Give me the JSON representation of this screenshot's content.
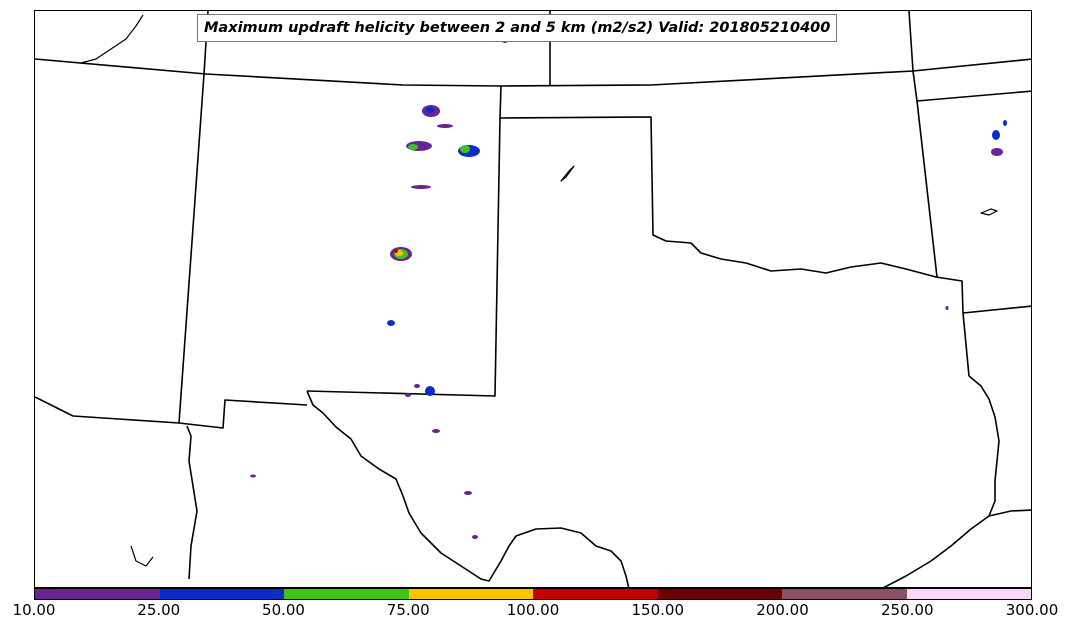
{
  "title": "Maximum updraft helicity between 2 and 5 km (m2/s2) Valid: 201805210400",
  "colorbar": {
    "labels": [
      "10.00",
      "25.00",
      "50.00",
      "75.00",
      "100.00",
      "150.00",
      "200.00",
      "250.00",
      "300.00"
    ],
    "colors": [
      "#6a2393",
      "#0a2dc8",
      "#3fc41a",
      "#ffc400",
      "#c20000",
      "#6a0000",
      "#8a5066",
      "#ffd8f8"
    ]
  }
}
